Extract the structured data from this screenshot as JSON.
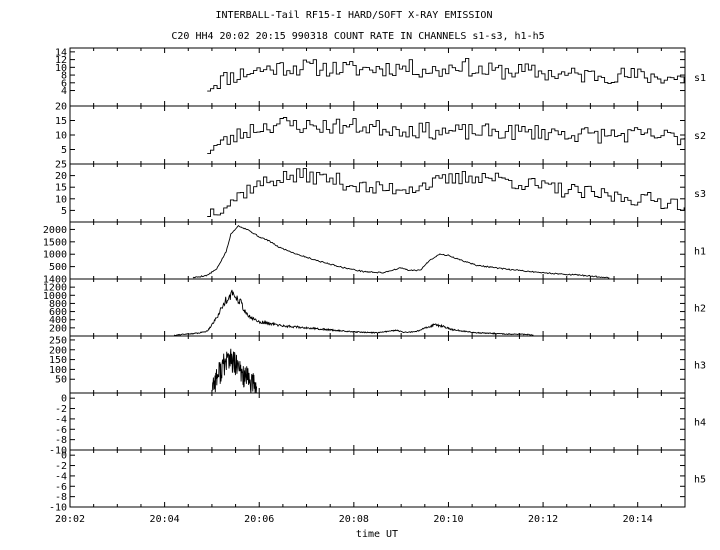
{
  "title_line1": "INTERBALL-Tail RF15-I HARD/SOFT X-RAY EMISSION",
  "title_line2": "C20 HH4 20:02 20:15 990318  COUNT RATE IN CHANNELS s1-s3, h1-h5",
  "chart_data": {
    "type": "line",
    "title": "INTERBALL-Tail RF15-I HARD/SOFT X-RAY EMISSION",
    "subtitle": "C20 HH4 20:02 20:15 990318  COUNT RATE IN CHANNELS s1-s3, h1-h5",
    "xlabel": "time UT",
    "x_tick_labels": [
      "20:02",
      "20:04",
      "20:06",
      "20:08",
      "20:10",
      "20:12",
      "20:14"
    ],
    "x_ticks_min": [
      0,
      2,
      4,
      6,
      8,
      10,
      12
    ],
    "xlim_min": [
      0,
      13
    ],
    "grid": false,
    "panels": [
      {
        "name": "s1",
        "ylim": [
          0,
          15
        ],
        "yticks": [
          4,
          6,
          8,
          10,
          12,
          14
        ],
        "ytick_labels": [
          "4",
          "6",
          "8",
          "10",
          "12",
          "14"
        ],
        "start_min": 2.9,
        "end_min": 13.0,
        "step_min": 0.07,
        "base": [
          [
            2.9,
            5
          ],
          [
            3.2,
            7
          ],
          [
            3.8,
            9
          ],
          [
            4.4,
            10
          ],
          [
            5.0,
            10
          ],
          [
            6.0,
            9.5
          ],
          [
            7.0,
            10
          ],
          [
            7.8,
            9
          ],
          [
            8.2,
            11
          ],
          [
            8.6,
            9
          ],
          [
            9.5,
            9
          ],
          [
            10.5,
            8
          ],
          [
            11.5,
            8
          ],
          [
            12.5,
            7.5
          ],
          [
            13.0,
            7
          ]
        ],
        "noise": 2.2,
        "seed": 11
      },
      {
        "name": "s2",
        "ylim": [
          0,
          20
        ],
        "yticks": [
          5,
          10,
          15,
          20
        ],
        "ytick_labels": [
          "5",
          "10",
          "15",
          "20"
        ],
        "start_min": 2.9,
        "end_min": 13.0,
        "step_min": 0.07,
        "base": [
          [
            2.9,
            5
          ],
          [
            3.3,
            8
          ],
          [
            3.8,
            12
          ],
          [
            4.4,
            14
          ],
          [
            5.0,
            13
          ],
          [
            6.0,
            13
          ],
          [
            7.0,
            12
          ],
          [
            8.0,
            11
          ],
          [
            9.0,
            11
          ],
          [
            10.0,
            11
          ],
          [
            11.0,
            10
          ],
          [
            12.0,
            10
          ],
          [
            13.0,
            9
          ]
        ],
        "noise": 2.8,
        "seed": 23
      },
      {
        "name": "s3",
        "ylim": [
          0,
          25
        ],
        "yticks": [
          5,
          10,
          15,
          20,
          25
        ],
        "ytick_labels": [
          "5",
          "10",
          "15",
          "20",
          "25"
        ],
        "start_min": 2.9,
        "end_min": 13.0,
        "step_min": 0.07,
        "base": [
          [
            2.9,
            4
          ],
          [
            3.3,
            8
          ],
          [
            3.8,
            15
          ],
          [
            4.4,
            19
          ],
          [
            5.0,
            20
          ],
          [
            5.6,
            18
          ],
          [
            6.3,
            14
          ],
          [
            7.2,
            15
          ],
          [
            8.0,
            18
          ],
          [
            8.6,
            20
          ],
          [
            9.2,
            18
          ],
          [
            10.0,
            15
          ],
          [
            11.0,
            12
          ],
          [
            12.0,
            10
          ],
          [
            13.0,
            8
          ]
        ],
        "noise": 3.3,
        "seed": 37
      },
      {
        "name": "h1",
        "ylim": [
          0,
          2300
        ],
        "yticks": [
          500,
          1000,
          1500,
          2000
        ],
        "ytick_labels": [
          "500",
          "1000",
          "1500",
          "2000"
        ],
        "start_min": 2.6,
        "end_min": 11.4,
        "step_min": 0.02,
        "base": [
          [
            2.6,
            50
          ],
          [
            2.9,
            150
          ],
          [
            3.1,
            400
          ],
          [
            3.3,
            1100
          ],
          [
            3.4,
            1800
          ],
          [
            3.55,
            2150
          ],
          [
            3.75,
            2000
          ],
          [
            4.0,
            1700
          ],
          [
            4.2,
            1550
          ],
          [
            4.4,
            1300
          ],
          [
            4.8,
            1000
          ],
          [
            5.3,
            700
          ],
          [
            5.8,
            450
          ],
          [
            6.2,
            300
          ],
          [
            6.6,
            250
          ],
          [
            7.0,
            450
          ],
          [
            7.15,
            350
          ],
          [
            7.4,
            350
          ],
          [
            7.6,
            750
          ],
          [
            7.8,
            1000
          ],
          [
            8.0,
            950
          ],
          [
            8.2,
            800
          ],
          [
            8.6,
            550
          ],
          [
            9.2,
            400
          ],
          [
            10.0,
            250
          ],
          [
            10.8,
            150
          ],
          [
            11.4,
            50
          ]
        ],
        "noise": 25,
        "seed": 5
      },
      {
        "name": "h2",
        "ylim": [
          0,
          1400
        ],
        "yticks": [
          200,
          400,
          600,
          800,
          1000,
          1200,
          1400
        ],
        "ytick_labels": [
          "200",
          "400",
          "600",
          "800",
          "1000",
          "1200",
          "1400"
        ],
        "start_min": 2.2,
        "end_min": 9.8,
        "step_min": 0.012,
        "base": [
          [
            2.2,
            20
          ],
          [
            2.7,
            70
          ],
          [
            2.9,
            120
          ],
          [
            3.1,
            450
          ],
          [
            3.3,
            900
          ],
          [
            3.45,
            1050
          ],
          [
            3.6,
            850
          ],
          [
            3.75,
            500
          ],
          [
            4.0,
            350
          ],
          [
            4.5,
            250
          ],
          [
            5.0,
            200
          ],
          [
            5.5,
            150
          ],
          [
            6.0,
            100
          ],
          [
            6.5,
            80
          ],
          [
            6.9,
            140
          ],
          [
            7.05,
            90
          ],
          [
            7.3,
            100
          ],
          [
            7.7,
            280
          ],
          [
            7.9,
            230
          ],
          [
            8.1,
            150
          ],
          [
            8.6,
            80
          ],
          [
            9.2,
            50
          ],
          [
            9.8,
            30
          ]
        ],
        "noise": 80,
        "seed": 91
      },
      {
        "name": "h3",
        "ylim": [
          -20,
          270
        ],
        "yticks": [
          50,
          100,
          150,
          200,
          250
        ],
        "ytick_labels": [
          "50",
          "100",
          "150",
          "200",
          "250"
        ],
        "start_min": 3.0,
        "end_min": 3.95,
        "step_min": 0.008,
        "base": [
          [
            3.0,
            20
          ],
          [
            3.15,
            80
          ],
          [
            3.35,
            160
          ],
          [
            3.5,
            120
          ],
          [
            3.7,
            60
          ],
          [
            3.95,
            5
          ]
        ],
        "noise": 65,
        "seed": 77
      },
      {
        "name": "h4",
        "ylim": [
          -10,
          1
        ],
        "yticks": [
          -10,
          -8,
          -6,
          -4,
          -2,
          0
        ],
        "ytick_labels": [
          "-10",
          "-8",
          "-6",
          "-4",
          "-2",
          "0"
        ],
        "start_min": 0,
        "end_min": 0,
        "step_min": 0.1,
        "base": [],
        "noise": 0,
        "seed": 1
      },
      {
        "name": "h5",
        "ylim": [
          -10,
          1
        ],
        "yticks": [
          -10,
          -8,
          -6,
          -4,
          -2,
          0
        ],
        "ytick_labels": [
          "-10",
          "-8",
          "-6",
          "-4",
          "-2",
          "0"
        ],
        "start_min": 0,
        "end_min": 0,
        "step_min": 0.1,
        "base": [],
        "noise": 0,
        "seed": 1
      }
    ]
  }
}
